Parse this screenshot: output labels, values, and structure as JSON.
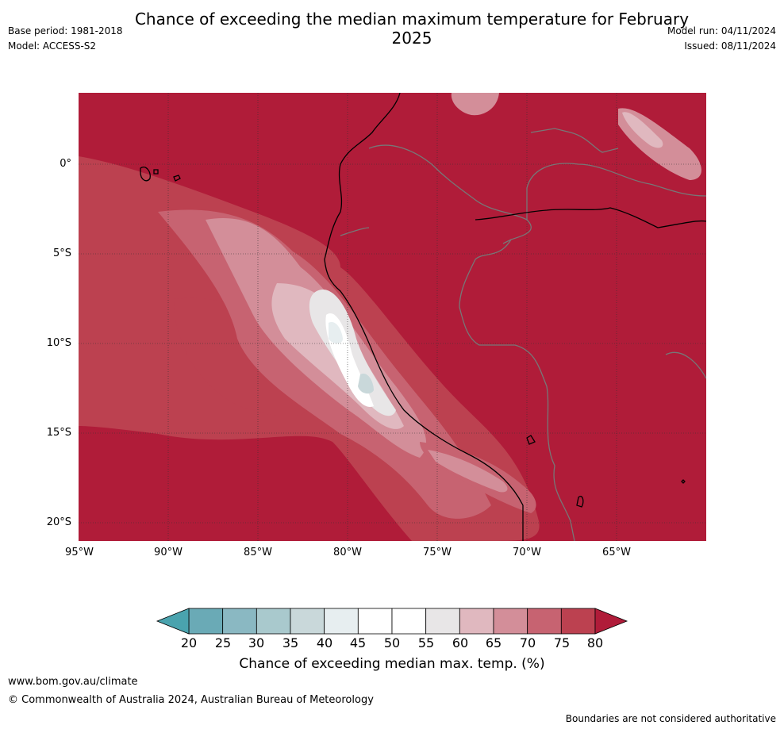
{
  "header": {
    "title": "Chance of exceeding the median maximum temperature for February 2025",
    "base_period": "Base period: 1981-2018",
    "model": "Model: ACCESS-S2",
    "model_run": "Model run: 04/11/2024",
    "issued": "Issued: 08/11/2024"
  },
  "map": {
    "lat_labels": [
      "0°",
      "5°S",
      "10°S",
      "15°S",
      "20°S"
    ],
    "lon_labels": [
      "95°W",
      "90°W",
      "85°W",
      "80°W",
      "75°W",
      "70°W",
      "65°W"
    ],
    "background_color": "#b01c39"
  },
  "colorbar": {
    "ticks": [
      "20",
      "25",
      "30",
      "35",
      "40",
      "45",
      "50",
      "55",
      "60",
      "65",
      "70",
      "75",
      "80"
    ],
    "colors": [
      "#6aaab6",
      "#8ab8c2",
      "#a9c9cd",
      "#c9d8da",
      "#e7eef0",
      "#ffffff",
      "#ffffff",
      "#e8e6e7",
      "#e0b8bf",
      "#d38e99",
      "#c76371",
      "#bc4150"
    ],
    "under_color": "#4aa3ae",
    "over_color": "#b01c39",
    "label": "Chance of exceeding median max. temp. (%)"
  },
  "footer": {
    "url": "www.bom.gov.au/climate",
    "copyright": "© Commonwealth of Australia 2024, Australian Bureau of Meteorology",
    "disclaimer": "Boundaries are not considered authoritative"
  }
}
